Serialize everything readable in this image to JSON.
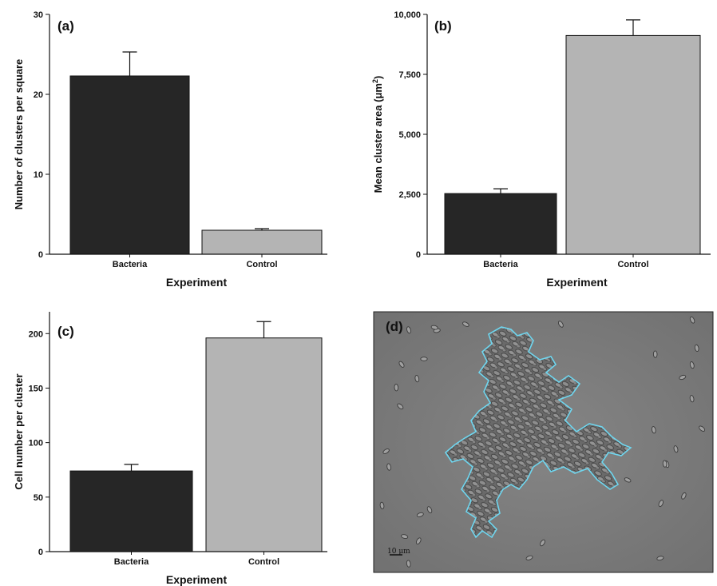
{
  "chart_data": [
    {
      "type": "bar",
      "panel_label": "(a)",
      "categories": [
        "Bacteria",
        "Control"
      ],
      "values": [
        22.3,
        3.0
      ],
      "errors": [
        3.0,
        0.2
      ],
      "colors": [
        "#262626",
        "#b4b4b4"
      ],
      "xlabel": "Experiment",
      "ylabel": "Number of clusters per square",
      "ylabel_sup": "",
      "ylabel_tail": "",
      "ylim": [
        0,
        30
      ],
      "yticks": [
        0,
        10,
        20,
        30
      ],
      "ytick_labels": [
        "0",
        "10",
        "20",
        "30"
      ]
    },
    {
      "type": "bar",
      "panel_label": "(b)",
      "categories": [
        "Bacteria",
        "Control"
      ],
      "values": [
        2530,
        9120
      ],
      "errors": [
        200,
        650
      ],
      "colors": [
        "#262626",
        "#b4b4b4"
      ],
      "xlabel": "Experiment",
      "ylabel": "Mean cluster area (μm",
      "ylabel_sup": "2",
      "ylabel_tail": ")",
      "ylim": [
        0,
        10000
      ],
      "yticks": [
        0,
        2500,
        5000,
        7500,
        10000
      ],
      "ytick_labels": [
        "0",
        "2,500",
        "5,000",
        "7,500",
        "10,000"
      ]
    },
    {
      "type": "bar",
      "panel_label": "(c)",
      "categories": [
        "Bacteria",
        "Control"
      ],
      "values": [
        74,
        196
      ],
      "errors": [
        6,
        15
      ],
      "colors": [
        "#262626",
        "#b4b4b4"
      ],
      "xlabel": "Experiment",
      "ylabel": "Cell number per cluster",
      "ylabel_sup": "",
      "ylabel_tail": "",
      "ylim": [
        0,
        220
      ],
      "yticks": [
        0,
        50,
        100,
        150,
        200
      ],
      "ytick_labels": [
        "0",
        "50",
        "100",
        "150",
        "200"
      ]
    }
  ],
  "micrograph": {
    "panel_label": "(d)",
    "scale_bar_label": "10 μm",
    "background_color": "#7b7b7b",
    "outline_color": "#6fd6ef"
  }
}
